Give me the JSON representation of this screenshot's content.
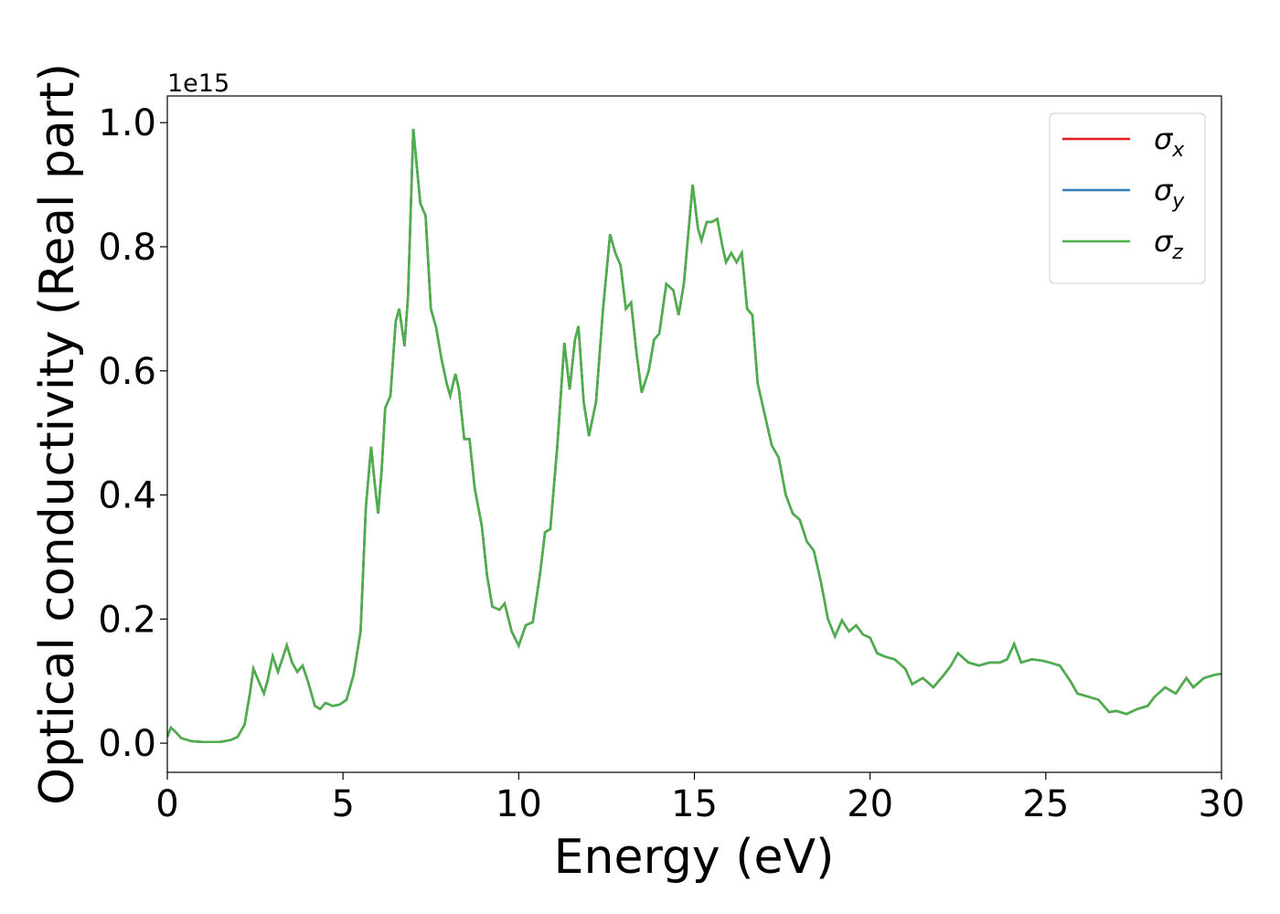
{
  "chart_data": {
    "type": "line",
    "xlabel": "Energy (eV)",
    "ylabel": "Optical conductivity (Real part)",
    "offset_label": "1e15",
    "xlim": [
      0,
      30
    ],
    "ylim": [
      -0.047,
      1.043
    ],
    "xticks": [
      0,
      5,
      10,
      15,
      20,
      25,
      30
    ],
    "yticks": [
      {
        "value": 0,
        "label": "0.0"
      },
      0.2,
      0.4,
      0.6,
      0.8,
      {
        "value": 1,
        "label": "1.0"
      }
    ],
    "grid": false,
    "legend": "upper right",
    "x": [
      0,
      0.1,
      0.2,
      0.4,
      0.7,
      1.0,
      1.5,
      1.8,
      2.0,
      2.2,
      2.35,
      2.45,
      2.6,
      2.75,
      2.85,
      3.0,
      3.15,
      3.3,
      3.4,
      3.55,
      3.7,
      3.85,
      4.0,
      4.2,
      4.35,
      4.5,
      4.7,
      4.9,
      5.1,
      5.3,
      5.5,
      5.65,
      5.8,
      5.9,
      6.0,
      6.1,
      6.2,
      6.35,
      6.5,
      6.6,
      6.75,
      6.85,
      7.0,
      7.1,
      7.2,
      7.35,
      7.5,
      7.65,
      7.8,
      7.95,
      8.05,
      8.2,
      8.3,
      8.45,
      8.6,
      8.75,
      8.95,
      9.1,
      9.25,
      9.45,
      9.6,
      9.8,
      10.0,
      10.2,
      10.4,
      10.6,
      10.75,
      10.9,
      11.1,
      11.3,
      11.45,
      11.6,
      11.7,
      11.85,
      12.0,
      12.2,
      12.4,
      12.6,
      12.75,
      12.9,
      13.05,
      13.2,
      13.35,
      13.5,
      13.7,
      13.85,
      14.0,
      14.2,
      14.4,
      14.55,
      14.7,
      14.95,
      15.1,
      15.2,
      15.35,
      15.5,
      15.65,
      15.8,
      15.9,
      16.05,
      16.2,
      16.35,
      16.5,
      16.65,
      16.8,
      17.0,
      17.2,
      17.4,
      17.6,
      17.8,
      18.0,
      18.2,
      18.4,
      18.6,
      18.8,
      19.0,
      19.2,
      19.4,
      19.6,
      19.8,
      20.0,
      20.2,
      20.4,
      20.7,
      21.0,
      21.2,
      21.5,
      21.8,
      22.1,
      22.3,
      22.5,
      22.8,
      23.1,
      23.4,
      23.7,
      23.9,
      24.1,
      24.3,
      24.6,
      24.9,
      25.1,
      25.4,
      25.7,
      25.9,
      26.2,
      26.5,
      26.8,
      27.0,
      27.3,
      27.6,
      27.9,
      28.1,
      28.4,
      28.7,
      29.0,
      29.2,
      29.5,
      29.8,
      30.0
    ],
    "series": [
      {
        "name": "σx",
        "color": "#e41a1c",
        "values": [
          0.01,
          0.025,
          0.02,
          0.008,
          0.003,
          0.002,
          0.002,
          0.005,
          0.01,
          0.03,
          0.08,
          0.12,
          0.1,
          0.08,
          0.1,
          0.14,
          0.115,
          0.14,
          0.158,
          0.13,
          0.115,
          0.125,
          0.1,
          0.06,
          0.055,
          0.065,
          0.06,
          0.062,
          0.07,
          0.11,
          0.18,
          0.38,
          0.478,
          0.42,
          0.37,
          0.44,
          0.54,
          0.56,
          0.68,
          0.7,
          0.64,
          0.72,
          0.99,
          0.93,
          0.87,
          0.85,
          0.7,
          0.67,
          0.62,
          0.58,
          0.56,
          0.595,
          0.57,
          0.49,
          0.49,
          0.41,
          0.35,
          0.27,
          0.22,
          0.215,
          0.225,
          0.18,
          0.157,
          0.19,
          0.195,
          0.27,
          0.34,
          0.345,
          0.48,
          0.645,
          0.57,
          0.65,
          0.672,
          0.55,
          0.495,
          0.55,
          0.7,
          0.82,
          0.79,
          0.77,
          0.7,
          0.71,
          0.63,
          0.565,
          0.6,
          0.65,
          0.66,
          0.74,
          0.73,
          0.69,
          0.74,
          0.9,
          0.83,
          0.81,
          0.84,
          0.84,
          0.845,
          0.8,
          0.775,
          0.79,
          0.775,
          0.79,
          0.7,
          0.69,
          0.58,
          0.53,
          0.48,
          0.46,
          0.4,
          0.37,
          0.36,
          0.325,
          0.31,
          0.26,
          0.2,
          0.172,
          0.198,
          0.18,
          0.19,
          0.175,
          0.17,
          0.145,
          0.14,
          0.135,
          0.12,
          0.095,
          0.105,
          0.09,
          0.11,
          0.125,
          0.145,
          0.13,
          0.125,
          0.13,
          0.13,
          0.135,
          0.16,
          0.13,
          0.135,
          0.133,
          0.13,
          0.125,
          0.1,
          0.08,
          0.075,
          0.07,
          0.05,
          0.052,
          0.047,
          0.055,
          0.06,
          0.075,
          0.09,
          0.08,
          0.105,
          0.09,
          0.105,
          0.11,
          0.112
        ]
      },
      {
        "name": "σy",
        "color": "#377eb8",
        "values": [
          0.01,
          0.025,
          0.02,
          0.008,
          0.003,
          0.002,
          0.002,
          0.005,
          0.01,
          0.03,
          0.08,
          0.12,
          0.1,
          0.08,
          0.1,
          0.14,
          0.115,
          0.14,
          0.158,
          0.13,
          0.115,
          0.125,
          0.1,
          0.06,
          0.055,
          0.065,
          0.06,
          0.062,
          0.07,
          0.11,
          0.18,
          0.38,
          0.478,
          0.42,
          0.37,
          0.44,
          0.54,
          0.56,
          0.68,
          0.7,
          0.64,
          0.72,
          0.99,
          0.93,
          0.87,
          0.85,
          0.7,
          0.67,
          0.62,
          0.58,
          0.56,
          0.595,
          0.57,
          0.49,
          0.49,
          0.41,
          0.35,
          0.27,
          0.22,
          0.215,
          0.225,
          0.18,
          0.157,
          0.19,
          0.195,
          0.27,
          0.34,
          0.345,
          0.48,
          0.645,
          0.57,
          0.65,
          0.672,
          0.55,
          0.495,
          0.55,
          0.7,
          0.82,
          0.79,
          0.77,
          0.7,
          0.71,
          0.63,
          0.565,
          0.6,
          0.65,
          0.66,
          0.74,
          0.73,
          0.69,
          0.74,
          0.9,
          0.83,
          0.81,
          0.84,
          0.84,
          0.845,
          0.8,
          0.775,
          0.79,
          0.775,
          0.79,
          0.7,
          0.69,
          0.58,
          0.53,
          0.48,
          0.46,
          0.4,
          0.37,
          0.36,
          0.325,
          0.31,
          0.26,
          0.2,
          0.172,
          0.198,
          0.18,
          0.19,
          0.175,
          0.17,
          0.145,
          0.14,
          0.135,
          0.12,
          0.095,
          0.105,
          0.09,
          0.11,
          0.125,
          0.145,
          0.13,
          0.125,
          0.13,
          0.13,
          0.135,
          0.16,
          0.13,
          0.135,
          0.133,
          0.13,
          0.125,
          0.1,
          0.08,
          0.075,
          0.07,
          0.05,
          0.052,
          0.047,
          0.055,
          0.06,
          0.075,
          0.09,
          0.08,
          0.105,
          0.09,
          0.105,
          0.11,
          0.112
        ]
      },
      {
        "name": "σz",
        "color": "#4daf4a",
        "values": [
          0.01,
          0.025,
          0.02,
          0.008,
          0.003,
          0.002,
          0.002,
          0.005,
          0.01,
          0.03,
          0.08,
          0.12,
          0.1,
          0.08,
          0.1,
          0.14,
          0.115,
          0.14,
          0.158,
          0.13,
          0.115,
          0.125,
          0.1,
          0.06,
          0.055,
          0.065,
          0.06,
          0.062,
          0.07,
          0.11,
          0.18,
          0.38,
          0.478,
          0.42,
          0.37,
          0.44,
          0.54,
          0.56,
          0.68,
          0.7,
          0.64,
          0.72,
          0.99,
          0.93,
          0.87,
          0.85,
          0.7,
          0.67,
          0.62,
          0.58,
          0.56,
          0.595,
          0.57,
          0.49,
          0.49,
          0.41,
          0.35,
          0.27,
          0.22,
          0.215,
          0.225,
          0.18,
          0.157,
          0.19,
          0.195,
          0.27,
          0.34,
          0.345,
          0.48,
          0.645,
          0.57,
          0.65,
          0.672,
          0.55,
          0.495,
          0.55,
          0.7,
          0.82,
          0.79,
          0.77,
          0.7,
          0.71,
          0.63,
          0.565,
          0.6,
          0.65,
          0.66,
          0.74,
          0.73,
          0.69,
          0.74,
          0.9,
          0.83,
          0.81,
          0.84,
          0.84,
          0.845,
          0.8,
          0.775,
          0.79,
          0.775,
          0.79,
          0.7,
          0.69,
          0.58,
          0.53,
          0.48,
          0.46,
          0.4,
          0.37,
          0.36,
          0.325,
          0.31,
          0.26,
          0.2,
          0.172,
          0.198,
          0.18,
          0.19,
          0.175,
          0.17,
          0.145,
          0.14,
          0.135,
          0.12,
          0.095,
          0.105,
          0.09,
          0.11,
          0.125,
          0.145,
          0.13,
          0.125,
          0.13,
          0.13,
          0.135,
          0.16,
          0.13,
          0.135,
          0.133,
          0.13,
          0.125,
          0.1,
          0.08,
          0.075,
          0.07,
          0.05,
          0.052,
          0.047,
          0.055,
          0.06,
          0.075,
          0.09,
          0.08,
          0.105,
          0.09,
          0.105,
          0.11,
          0.112
        ]
      }
    ]
  }
}
